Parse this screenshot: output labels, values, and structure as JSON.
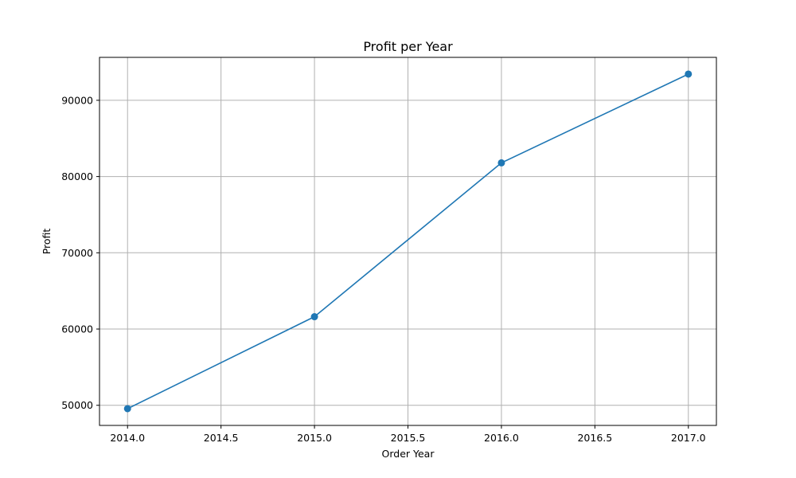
{
  "chart_data": {
    "type": "line",
    "title": "Profit per Year",
    "xlabel": "Order Year",
    "ylabel": "Profit",
    "x": [
      2014,
      2015,
      2016,
      2017
    ],
    "series": [
      {
        "values": [
          49556,
          61619,
          81795,
          93439
        ],
        "color": "#1f77b4",
        "marker": "circle"
      }
    ],
    "xlim": [
      2013.85,
      2017.15
    ],
    "ylim": [
      47360,
      95630
    ],
    "xticks": [
      2014.0,
      2014.5,
      2015.0,
      2015.5,
      2016.0,
      2016.5,
      2017.0
    ],
    "xtick_labels": [
      "2014.0",
      "2014.5",
      "2015.0",
      "2015.5",
      "2016.0",
      "2016.5",
      "2017.0"
    ],
    "yticks": [
      50000,
      60000,
      70000,
      80000,
      90000
    ],
    "ytick_labels": [
      "50000",
      "60000",
      "70000",
      "80000",
      "90000"
    ],
    "grid": true,
    "legend": "none"
  }
}
